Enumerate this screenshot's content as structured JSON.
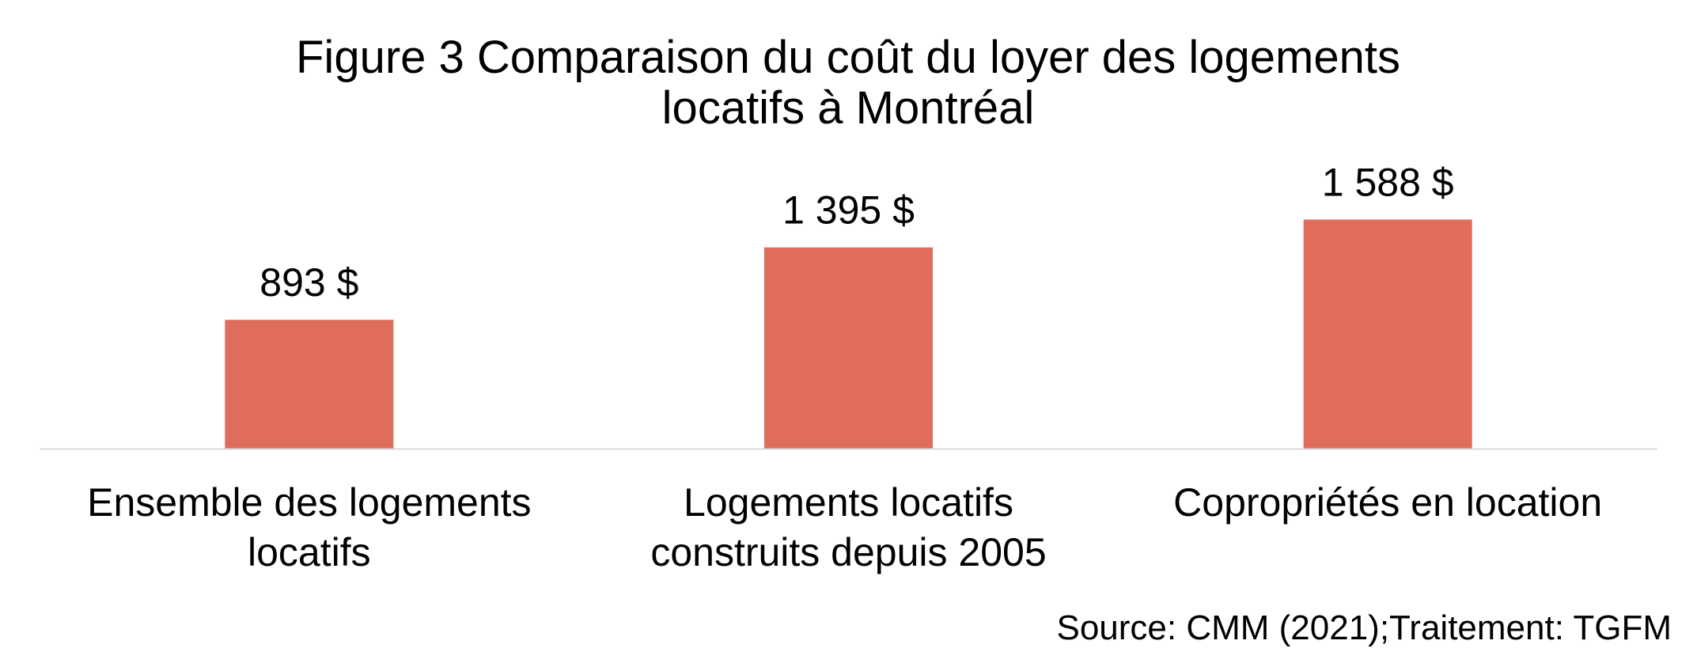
{
  "chart_data": {
    "type": "bar",
    "title": "Figure 3 Comparaison du coût du loyer des logements locatifs à Montréal",
    "title_lines": [
      "Figure 3 Comparaison du coût du loyer des logements",
      "locatifs à Montréal"
    ],
    "categories": [
      [
        "Ensemble des logements",
        "locatifs"
      ],
      [
        "Logements locatifs",
        "construits depuis 2005"
      ],
      [
        "Copropriétés en location"
      ]
    ],
    "values": [
      893,
      1395,
      1588
    ],
    "data_labels": [
      "893 $",
      "1 395 $",
      "1 588 $"
    ],
    "ylim": [
      0,
      1800
    ],
    "grid": false,
    "legend": "none",
    "bar_color": "#E06C5C",
    "axis_color": "#D9D9D9",
    "source": "Source: CMM (2021);Traitement: TGFM"
  }
}
